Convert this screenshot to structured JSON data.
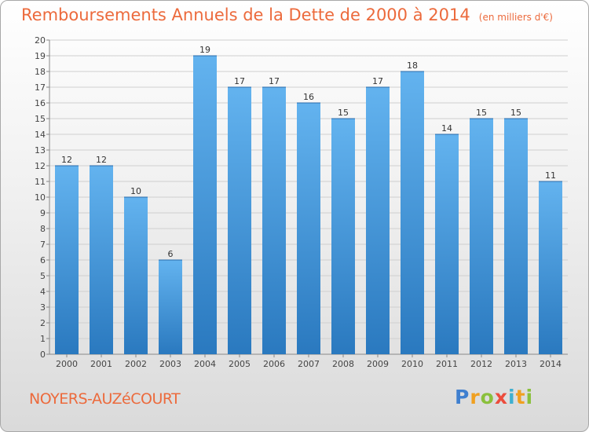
{
  "title": "Remboursements Annuels de la Dette de 2000 à 2014",
  "unit": "(en milliers d'€)",
  "commune": "NOYERS-AUZéCOURT",
  "logo": "Proxiti",
  "colors": {
    "title": "#ec6a3c",
    "bar_light": "#63b3ef",
    "bar_dark": "#2a79bf",
    "grid": "#cfcfcf"
  },
  "chart_data": {
    "type": "bar",
    "title": "Remboursements Annuels de la Dette de 2000 à 2014",
    "ylabel": "",
    "xlabel": "",
    "categories": [
      "2000",
      "2001",
      "2002",
      "2003",
      "2004",
      "2005",
      "2006",
      "2007",
      "2008",
      "2009",
      "2010",
      "2011",
      "2012",
      "2013",
      "2014"
    ],
    "values": [
      12,
      12,
      10,
      6,
      19,
      17,
      17,
      16,
      15,
      17,
      18,
      14,
      15,
      15,
      11
    ],
    "ylim": [
      0,
      20
    ],
    "yticks": [
      0,
      1,
      2,
      3,
      4,
      5,
      6,
      7,
      8,
      9,
      10,
      11,
      12,
      13,
      14,
      15,
      16,
      17,
      18,
      19,
      20
    ],
    "grid": true,
    "legend": "none"
  }
}
